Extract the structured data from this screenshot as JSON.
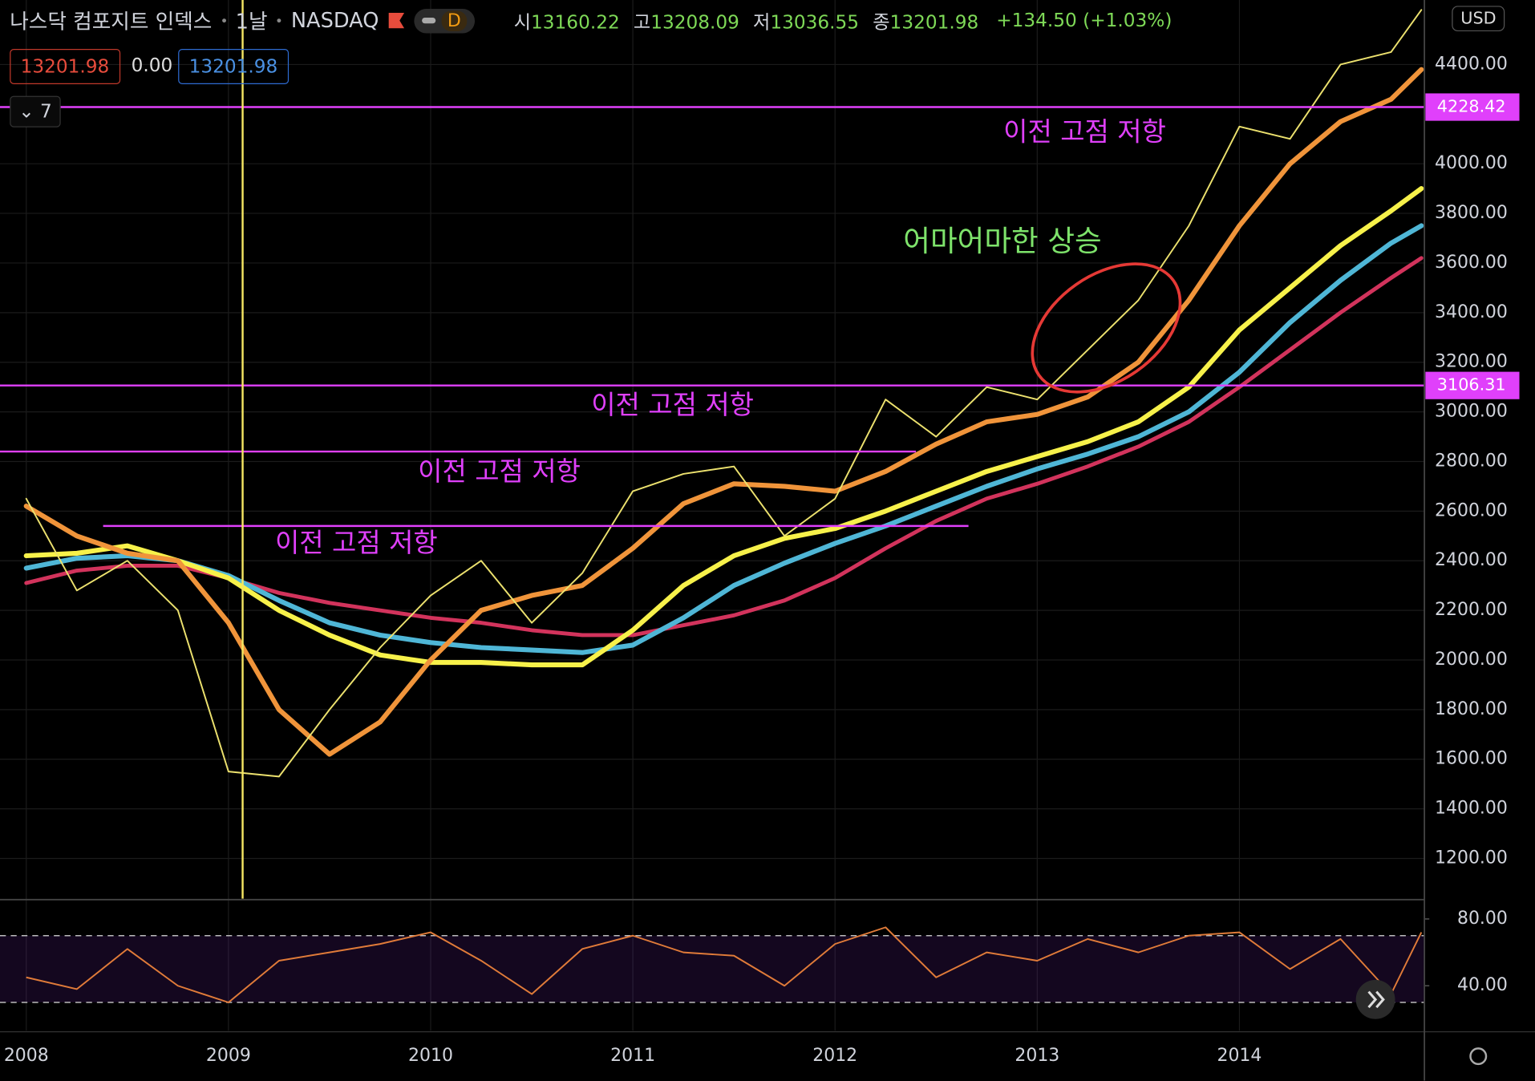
{
  "header": {
    "title": "나스닥 컴포지트 인덱스",
    "interval": "1날",
    "exchange": "NASDAQ",
    "badge": "D",
    "ohlc": [
      {
        "label": "시",
        "value": "13160.22"
      },
      {
        "label": "고",
        "value": "13208.09"
      },
      {
        "label": "저",
        "value": "13036.55"
      },
      {
        "label": "종",
        "value": "13201.98"
      }
    ],
    "change": "+134.50 (+1.03%)",
    "inputs": [
      "13201.98",
      "0.00",
      "13201.98"
    ],
    "indicators": "7",
    "currency": "USD"
  },
  "chart_data": {
    "type": "line",
    "x": [
      2008.0,
      2008.25,
      2008.5,
      2008.75,
      2009.0,
      2009.25,
      2009.5,
      2009.75,
      2010.0,
      2010.25,
      2010.5,
      2010.75,
      2011.0,
      2011.25,
      2011.5,
      2011.75,
      2012.0,
      2012.25,
      2012.5,
      2012.75,
      2013.0,
      2013.25,
      2013.5,
      2013.75,
      2014.0,
      2014.25,
      2014.5,
      2014.75,
      2014.9
    ],
    "xlim": [
      2007.87,
      2014.915
    ],
    "xticks": [
      2008,
      2009,
      2010,
      2011,
      2012,
      2013,
      2014
    ],
    "ylim": [
      1038,
      4660
    ],
    "yticks": [
      {
        "value": 1200,
        "label": "1200.00"
      },
      {
        "value": 1400,
        "label": "1400.00"
      },
      {
        "value": 1600,
        "label": "1600.00"
      },
      {
        "value": 1800,
        "label": "1800.00"
      },
      {
        "value": 2000,
        "label": "2000.00"
      },
      {
        "value": 2200,
        "label": "2200.00"
      },
      {
        "value": 2400,
        "label": "2400.00"
      },
      {
        "value": 2600,
        "label": "2600.00"
      },
      {
        "value": 2800,
        "label": "2800.00"
      },
      {
        "value": 3000,
        "label": "3000.00"
      },
      {
        "value": 3200,
        "label": "3200.00"
      },
      {
        "value": 3400,
        "label": "3400.00"
      },
      {
        "value": 3600,
        "label": "3600.00"
      },
      {
        "value": 3800,
        "label": "3800.00"
      },
      {
        "value": 4000,
        "label": "4000.00"
      },
      {
        "value": 4400,
        "label": "4400.00"
      }
    ],
    "grid": true,
    "series": [
      {
        "color": "#ece16e",
        "width": 1.6,
        "values": [
          2650,
          2280,
          2400,
          2200,
          1550,
          1530,
          1800,
          2050,
          2260,
          2400,
          2150,
          2350,
          2680,
          2750,
          2780,
          2500,
          2650,
          3050,
          2900,
          3100,
          3050,
          3250,
          3450,
          3750,
          4150,
          4100,
          4400,
          4450,
          4620
        ]
      },
      {
        "color": "#f0943a",
        "width": 5,
        "values": [
          2620,
          2500,
          2430,
          2400,
          2150,
          1800,
          1620,
          1750,
          2000,
          2200,
          2260,
          2300,
          2450,
          2630,
          2710,
          2700,
          2680,
          2760,
          2870,
          2960,
          2990,
          3060,
          3200,
          3450,
          3750,
          4000,
          4170,
          4260,
          4380
        ]
      },
      {
        "color": "#f7f14a",
        "width": 5,
        "values": [
          2420,
          2430,
          2460,
          2400,
          2330,
          2200,
          2100,
          2020,
          1990,
          1990,
          1980,
          1980,
          2120,
          2300,
          2420,
          2490,
          2530,
          2600,
          2680,
          2760,
          2820,
          2880,
          2960,
          3100,
          3330,
          3500,
          3670,
          3810,
          3900
        ]
      },
      {
        "color": "#4fb6d6",
        "width": 5,
        "values": [
          2370,
          2410,
          2420,
          2400,
          2340,
          2240,
          2150,
          2100,
          2070,
          2050,
          2040,
          2030,
          2060,
          2170,
          2300,
          2390,
          2470,
          2540,
          2620,
          2700,
          2770,
          2830,
          2900,
          3000,
          3160,
          3360,
          3530,
          3680,
          3750
        ]
      },
      {
        "color": "#d2335c",
        "width": 4,
        "values": [
          2310,
          2360,
          2380,
          2380,
          2330,
          2270,
          2230,
          2200,
          2170,
          2150,
          2120,
          2100,
          2100,
          2140,
          2180,
          2240,
          2330,
          2450,
          2560,
          2650,
          2710,
          2780,
          2860,
          2960,
          3100,
          3250,
          3400,
          3540,
          3620
        ]
      }
    ],
    "hlines": [
      {
        "value": 4228.42,
        "x": [
          2007.87,
          2014.915
        ],
        "color": "#e040fb",
        "tag": true
      },
      {
        "value": 3106.31,
        "x": [
          2007.87,
          2014.915
        ],
        "color": "#e040fb",
        "tag": true
      },
      {
        "value": 2840,
        "x": [
          2007.87,
          2012.4
        ],
        "color": "#e040fb",
        "tag": false
      },
      {
        "value": 2540,
        "x": [
          2008.38,
          2012.66
        ],
        "color": "#e040fb",
        "tag": false
      }
    ],
    "vline": {
      "x": 2009.07,
      "color": "#f5e663"
    },
    "annotations": [
      {
        "text": "이전 고점 저항",
        "color": "#e040fb"
      },
      {
        "text": "이전 고점 저항",
        "color": "#e040fb"
      },
      {
        "text": "이전 고점 저항",
        "color": "#e040fb"
      },
      {
        "text": "이전 고점 저항",
        "color": "#e040fb"
      },
      {
        "text": "어마어마한 상승",
        "color": "#7ee36b"
      }
    ],
    "oscillator": {
      "type": "line",
      "color": "#e07b39",
      "ylim": [
        13,
        91
      ],
      "yticks": [
        {
          "value": 80,
          "label": "80.00"
        },
        {
          "value": 40,
          "label": "40.00"
        }
      ],
      "levels": [
        70,
        30
      ],
      "values": [
        45,
        38,
        62,
        40,
        30,
        55,
        60,
        65,
        72,
        55,
        35,
        62,
        70,
        60,
        58,
        40,
        65,
        75,
        45,
        60,
        55,
        68,
        60,
        70,
        72,
        50,
        68,
        35,
        72
      ]
    }
  }
}
